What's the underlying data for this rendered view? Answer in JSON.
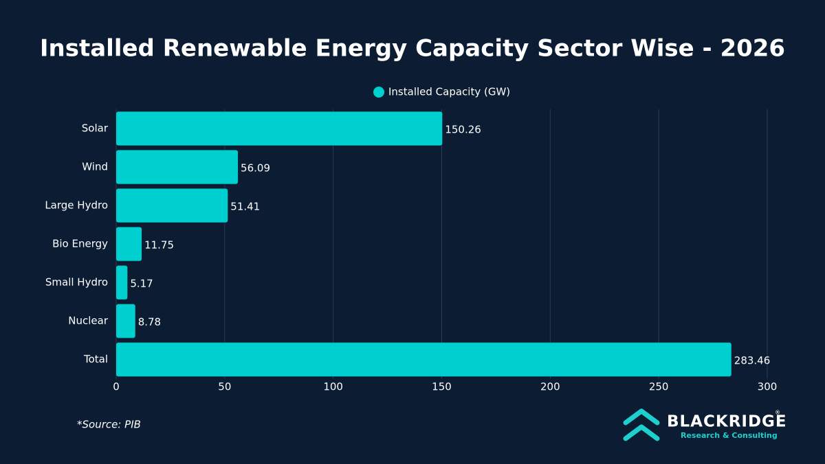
{
  "chart_data": {
    "type": "bar",
    "orientation": "horizontal",
    "title": "Installed Renewable Energy Capacity Sector Wise - 2026",
    "categories": [
      "Solar",
      "Wind",
      "Large Hydro",
      "Bio Energy",
      "Small Hydro",
      "Nuclear",
      "Total"
    ],
    "series": [
      {
        "name": "Installed Capacity (GW)",
        "color": "#00cfcf",
        "values": [
          150.26,
          56.09,
          51.41,
          11.75,
          5.17,
          8.78,
          283.46
        ]
      }
    ],
    "xlim": [
      0,
      300
    ],
    "xticks": [
      0,
      50,
      100,
      150,
      200,
      250,
      300
    ],
    "grid": true,
    "legend": "top",
    "source": "*Source: PIB"
  },
  "brand": {
    "name": "BLACKRIDGE",
    "mark": "®",
    "tagline": "Research & Consulting"
  }
}
